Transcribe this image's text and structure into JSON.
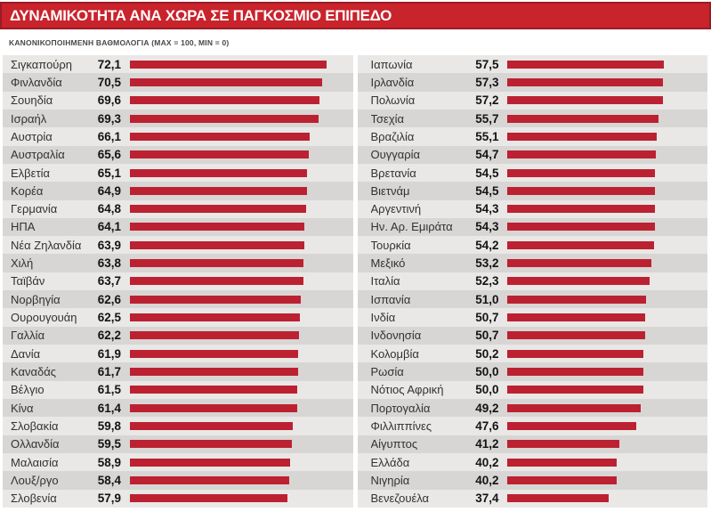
{
  "header": {
    "title": "ΔΥΝΑΜΙΚΟΤΗΤΑ ΑΝΑ ΧΩΡΑ ΣΕ ΠΑΓΚΟΣΜΙΟ ΕΠΙΠΕΔΟ"
  },
  "subtitle": "ΚΑΝΟΝΙΚΟΠΟΙΗΜΕΝΗ ΒΑΘΜΟΛΟΓΙΑ (MAX = 100, MIN = 0)",
  "colors": {
    "header_bg": "#c9232c",
    "header_border": "#9a1c24",
    "bar": "#bc2132",
    "row_light": "#e9e8e6",
    "row_dark": "#d7d6d4"
  },
  "chart_data": {
    "type": "bar",
    "orientation": "horizontal",
    "title": "ΔΥΝΑΜΙΚΟΤΗΤΑ ΑΝΑ ΧΩΡΑ ΣΕ ΠΑΓΚΟΣΜΙΟ ΕΠΙΠΕΔΟ",
    "subtitle": "ΚΑΝΟΝΙΚΟΠΟΙΗΜΕΝΗ ΒΑΘΜΟΛΟΓΙΑ (MAX = 100, MIN = 0)",
    "value_range": [
      0,
      100
    ],
    "grid": false,
    "legend": false,
    "decimal_separator": ",",
    "columns": [
      {
        "items": [
          {
            "country": "Σιγκαπούρη",
            "value": 72.1,
            "display": "72,1"
          },
          {
            "country": "Φινλανδία",
            "value": 70.5,
            "display": "70,5"
          },
          {
            "country": "Σουηδία",
            "value": 69.6,
            "display": "69,6"
          },
          {
            "country": "Ισραήλ",
            "value": 69.3,
            "display": "69,3"
          },
          {
            "country": "Αυστρία",
            "value": 66.1,
            "display": "66,1"
          },
          {
            "country": "Αυστραλία",
            "value": 65.6,
            "display": "65,6"
          },
          {
            "country": "Ελβετία",
            "value": 65.1,
            "display": "65,1"
          },
          {
            "country": "Κορέα",
            "value": 64.9,
            "display": "64,9"
          },
          {
            "country": "Γερμανία",
            "value": 64.8,
            "display": "64,8"
          },
          {
            "country": "ΗΠΑ",
            "value": 64.1,
            "display": "64,1"
          },
          {
            "country": "Νέα Ζηλανδία",
            "value": 63.9,
            "display": "63,9"
          },
          {
            "country": "Χιλή",
            "value": 63.8,
            "display": "63,8"
          },
          {
            "country": "Ταϊβάν",
            "value": 63.7,
            "display": "63,7"
          },
          {
            "country": "Νορβηγία",
            "value": 62.6,
            "display": "62,6"
          },
          {
            "country": "Ουρουγουάη",
            "value": 62.5,
            "display": "62,5"
          },
          {
            "country": "Γαλλία",
            "value": 62.2,
            "display": "62,2"
          },
          {
            "country": "Δανία",
            "value": 61.9,
            "display": "61,9"
          },
          {
            "country": "Καναδάς",
            "value": 61.7,
            "display": "61,7"
          },
          {
            "country": "Βέλγιο",
            "value": 61.5,
            "display": "61,5"
          },
          {
            "country": "Κίνα",
            "value": 61.4,
            "display": "61,4"
          },
          {
            "country": "Σλοβακία",
            "value": 59.8,
            "display": "59,8"
          },
          {
            "country": "Ολλανδία",
            "value": 59.5,
            "display": "59,5"
          },
          {
            "country": "Μαλαισία",
            "value": 58.9,
            "display": "58,9"
          },
          {
            "country": "Λουξ/ργο",
            "value": 58.4,
            "display": "58,4"
          },
          {
            "country": "Σλοβενία",
            "value": 57.9,
            "display": "57,9"
          }
        ]
      },
      {
        "items": [
          {
            "country": "Ιαπωνία",
            "value": 57.5,
            "display": "57,5"
          },
          {
            "country": "Ιρλανδία",
            "value": 57.3,
            "display": "57,3"
          },
          {
            "country": "Πολωνία",
            "value": 57.2,
            "display": "57,2"
          },
          {
            "country": "Τσεχία",
            "value": 55.7,
            "display": "55,7"
          },
          {
            "country": "Βραζιλία",
            "value": 55.1,
            "display": "55,1"
          },
          {
            "country": "Ουγγαρία",
            "value": 54.7,
            "display": "54,7"
          },
          {
            "country": "Βρετανία",
            "value": 54.5,
            "display": "54,5"
          },
          {
            "country": "Βιετνάμ",
            "value": 54.5,
            "display": "54,5"
          },
          {
            "country": "Αργεντινή",
            "value": 54.3,
            "display": "54,3"
          },
          {
            "country": "Ην. Αρ. Εμιράτα",
            "value": 54.3,
            "display": "54,3"
          },
          {
            "country": "Τουρκία",
            "value": 54.2,
            "display": "54,2"
          },
          {
            "country": "Μεξικό",
            "value": 53.2,
            "display": "53,2"
          },
          {
            "country": "Ιταλία",
            "value": 52.3,
            "display": "52,3"
          },
          {
            "country": "Ισπανία",
            "value": 51.0,
            "display": "51,0"
          },
          {
            "country": "Ινδία",
            "value": 50.7,
            "display": "50,7"
          },
          {
            "country": "Ινδονησία",
            "value": 50.7,
            "display": "50,7"
          },
          {
            "country": "Κολομβία",
            "value": 50.2,
            "display": "50,2"
          },
          {
            "country": "Ρωσία",
            "value": 50.0,
            "display": "50,0"
          },
          {
            "country": "Νότιος Αφρική",
            "value": 50.0,
            "display": "50,0"
          },
          {
            "country": "Πορτογαλία",
            "value": 49.2,
            "display": "49,2"
          },
          {
            "country": "Φιλλιππίνες",
            "value": 47.6,
            "display": "47,6"
          },
          {
            "country": "Αίγυπτος",
            "value": 41.2,
            "display": "41,2"
          },
          {
            "country": "Ελλάδα",
            "value": 40.2,
            "display": "40,2"
          },
          {
            "country": "Νιγηρία",
            "value": 40.2,
            "display": "40,2"
          },
          {
            "country": "Βενεζουέλα",
            "value": 37.4,
            "display": "37,4"
          }
        ]
      }
    ]
  }
}
